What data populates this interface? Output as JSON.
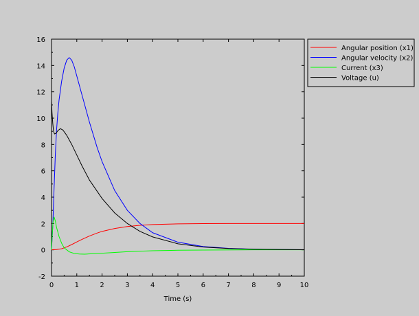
{
  "chart_data": {
    "type": "line",
    "title": "",
    "xlabel": "Time (s)",
    "ylabel": "",
    "xlim": [
      0,
      10
    ],
    "ylim": [
      -2,
      16
    ],
    "xticks": [
      0,
      1,
      2,
      3,
      4,
      5,
      6,
      7,
      8,
      9,
      10
    ],
    "yticks": [
      -2,
      0,
      2,
      4,
      6,
      8,
      10,
      12,
      14,
      16
    ],
    "grid": false,
    "legend_position": "right",
    "background": "#cccccc",
    "plot_background": "#cccccc",
    "series": [
      {
        "name": "Angular position (x1)",
        "color": "#ff0000",
        "points": [
          [
            0,
            0
          ],
          [
            0.2,
            0.02
          ],
          [
            0.4,
            0.08
          ],
          [
            0.6,
            0.22
          ],
          [
            0.8,
            0.4
          ],
          [
            1.0,
            0.6
          ],
          [
            1.2,
            0.79
          ],
          [
            1.5,
            1.05
          ],
          [
            1.8,
            1.27
          ],
          [
            2.0,
            1.4
          ],
          [
            2.5,
            1.62
          ],
          [
            3.0,
            1.77
          ],
          [
            3.5,
            1.86
          ],
          [
            4.0,
            1.92
          ],
          [
            5.0,
            1.97
          ],
          [
            6.0,
            1.99
          ],
          [
            7.0,
            2.0
          ],
          [
            10.0,
            2.0
          ]
        ]
      },
      {
        "name": "Angular velocity (x2)",
        "color": "#0000ff",
        "points": [
          [
            0,
            0
          ],
          [
            0.05,
            1.8
          ],
          [
            0.1,
            4.6
          ],
          [
            0.15,
            7.2
          ],
          [
            0.2,
            9.1
          ],
          [
            0.25,
            10.4
          ],
          [
            0.3,
            11.4
          ],
          [
            0.4,
            12.8
          ],
          [
            0.5,
            13.8
          ],
          [
            0.6,
            14.4
          ],
          [
            0.7,
            14.6
          ],
          [
            0.8,
            14.4
          ],
          [
            0.9,
            13.9
          ],
          [
            1.0,
            13.2
          ],
          [
            1.2,
            11.8
          ],
          [
            1.5,
            9.7
          ],
          [
            1.8,
            7.8
          ],
          [
            2.0,
            6.7
          ],
          [
            2.5,
            4.5
          ],
          [
            3.0,
            3.0
          ],
          [
            3.5,
            2.0
          ],
          [
            4.0,
            1.3
          ],
          [
            5.0,
            0.58
          ],
          [
            6.0,
            0.25
          ],
          [
            7.0,
            0.11
          ],
          [
            8.0,
            0.05
          ],
          [
            9.0,
            0.02
          ],
          [
            10.0,
            0.01
          ]
        ]
      },
      {
        "name": "Current (x3)",
        "color": "#00ff00",
        "points": [
          [
            0,
            0
          ],
          [
            0.03,
            1.2
          ],
          [
            0.06,
            2.1
          ],
          [
            0.1,
            2.5
          ],
          [
            0.15,
            2.2
          ],
          [
            0.2,
            1.7
          ],
          [
            0.3,
            1.0
          ],
          [
            0.4,
            0.5
          ],
          [
            0.5,
            0.15
          ],
          [
            0.7,
            -0.15
          ],
          [
            0.9,
            -0.28
          ],
          [
            1.1,
            -0.32
          ],
          [
            1.3,
            -0.33
          ],
          [
            1.6,
            -0.3
          ],
          [
            2.0,
            -0.26
          ],
          [
            2.5,
            -0.2
          ],
          [
            3.0,
            -0.14
          ],
          [
            4.0,
            -0.07
          ],
          [
            5.0,
            -0.03
          ],
          [
            6.0,
            -0.02
          ],
          [
            8.0,
            0.0
          ],
          [
            10.0,
            0.0
          ]
        ]
      },
      {
        "name": "Voltage (u)",
        "color": "#000000",
        "points": [
          [
            0,
            11.3
          ],
          [
            0.02,
            10.4
          ],
          [
            0.05,
            9.6
          ],
          [
            0.08,
            9.0
          ],
          [
            0.12,
            8.8
          ],
          [
            0.18,
            8.85
          ],
          [
            0.25,
            9.05
          ],
          [
            0.35,
            9.2
          ],
          [
            0.45,
            9.1
          ],
          [
            0.6,
            8.7
          ],
          [
            0.8,
            8.0
          ],
          [
            1.0,
            7.2
          ],
          [
            1.2,
            6.4
          ],
          [
            1.5,
            5.3
          ],
          [
            2.0,
            3.9
          ],
          [
            2.5,
            2.8
          ],
          [
            3.0,
            2.0
          ],
          [
            3.5,
            1.4
          ],
          [
            4.0,
            0.98
          ],
          [
            5.0,
            0.46
          ],
          [
            6.0,
            0.21
          ],
          [
            7.0,
            0.1
          ],
          [
            8.0,
            0.04
          ],
          [
            9.0,
            0.02
          ],
          [
            10.0,
            0.01
          ]
        ]
      }
    ]
  }
}
